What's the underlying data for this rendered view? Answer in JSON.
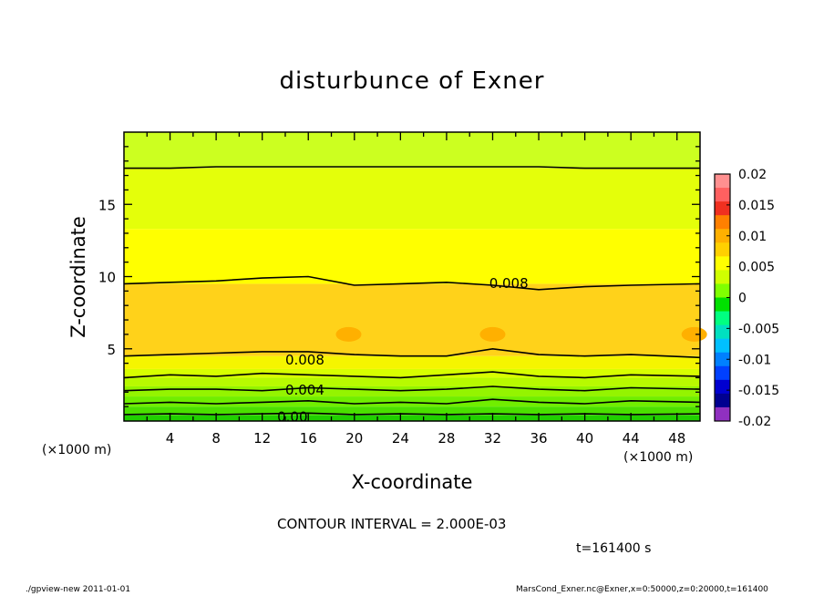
{
  "title": "disturbunce of Exner",
  "contour_interval": "CONTOUR INTERVAL = 2.000E-03",
  "time_label": "t=161400 s",
  "footer_left": "./gpview-new  2011-01-01",
  "footer_right": "MarsCond_Exner.nc@Exner,x=0:50000,z=0:20000,t=161400",
  "chart_data": {
    "type": "heatmap",
    "title": "disturbunce of Exner",
    "xlabel": "X-coordinate",
    "ylabel": "Z-coordinate",
    "x_unit_label": "(×1000 m)",
    "z_unit_label": "(×1000 m)",
    "xlim": [
      0,
      50
    ],
    "ylim": [
      0,
      20
    ],
    "x_ticks": [
      4,
      8,
      12,
      16,
      20,
      24,
      28,
      32,
      36,
      40,
      44,
      48
    ],
    "y_ticks": [
      5,
      10,
      15
    ],
    "contour_interval": 0.002,
    "contour_labels": [
      "0.008",
      "0.008",
      "0.004",
      "0.00"
    ],
    "colorbar": {
      "ticks": [
        "0.02",
        "0.015",
        "0.01",
        "0.005",
        "0",
        "-0.005",
        "-0.01",
        "-0.015",
        "-0.02"
      ],
      "range": [
        -0.02,
        0.02
      ],
      "colors": [
        "#ff9090",
        "#ff6060",
        "#f03020",
        "#ff8000",
        "#ffb000",
        "#ffd000",
        "#ffff00",
        "#d0ff00",
        "#80ff00",
        "#00e000",
        "#00ff80",
        "#00e0c0",
        "#00c0ff",
        "#0080ff",
        "#0040ff",
        "#0000d0",
        "#000090",
        "#9030c0"
      ]
    },
    "bands": [
      {
        "from": 0.0,
        "to": 0.4,
        "color": "#20d000"
      },
      {
        "from": 0.4,
        "to": 1.0,
        "color": "#4be000"
      },
      {
        "from": 1.0,
        "to": 1.7,
        "color": "#70ee00"
      },
      {
        "from": 1.7,
        "to": 2.4,
        "color": "#94f400"
      },
      {
        "from": 2.4,
        "to": 3.0,
        "color": "#b8fa00"
      },
      {
        "from": 3.0,
        "to": 3.6,
        "color": "#d8ff00"
      },
      {
        "from": 3.6,
        "to": 4.5,
        "color": "#f5f500"
      },
      {
        "from": 4.5,
        "to": 9.5,
        "color": "#ffd21a"
      },
      {
        "from": 9.5,
        "to": 13.3,
        "color": "#ffff00"
      },
      {
        "from": 13.3,
        "to": 17.5,
        "color": "#e4ff0a"
      },
      {
        "from": 17.5,
        "to": 20.0,
        "color": "#ccff20"
      }
    ],
    "contours": [
      {
        "level": 0.0,
        "z": [
          0.45,
          0.5,
          0.45,
          0.5,
          0.55,
          0.45,
          0.5,
          0.45,
          0.5,
          0.45,
          0.5,
          0.45,
          0.5
        ]
      },
      {
        "level": 0.002,
        "z": [
          1.2,
          1.3,
          1.2,
          1.3,
          1.4,
          1.2,
          1.3,
          1.2,
          1.5,
          1.3,
          1.2,
          1.4,
          1.3
        ]
      },
      {
        "level": 0.004,
        "z": [
          2.1,
          2.2,
          2.2,
          2.1,
          2.3,
          2.2,
          2.1,
          2.2,
          2.4,
          2.2,
          2.1,
          2.3,
          2.2
        ]
      },
      {
        "level": 0.006,
        "z": [
          3.0,
          3.2,
          3.1,
          3.3,
          3.2,
          3.1,
          3.0,
          3.2,
          3.4,
          3.1,
          3.0,
          3.2,
          3.1
        ]
      },
      {
        "level": 0.008,
        "z": [
          4.5,
          4.6,
          4.7,
          4.8,
          4.8,
          4.6,
          4.5,
          4.5,
          5.0,
          4.6,
          4.5,
          4.6,
          4.4
        ]
      },
      {
        "level": 0.008,
        "z": [
          9.5,
          9.6,
          9.7,
          9.9,
          10.0,
          9.4,
          9.5,
          9.6,
          9.4,
          9.1,
          9.3,
          9.4,
          9.5
        ]
      },
      {
        "level": 0.006,
        "z": [
          17.5,
          17.5,
          17.6,
          17.6,
          17.6,
          17.6,
          17.6,
          17.6,
          17.6,
          17.6,
          17.5,
          17.5,
          17.5
        ]
      }
    ],
    "contour_x": [
      0,
      4,
      8,
      12,
      16,
      20,
      24,
      28,
      32,
      36,
      40,
      44,
      50
    ],
    "blobs": [
      {
        "x": 19.5,
        "z": 6.0
      },
      {
        "x": 32.0,
        "z": 6.0
      },
      {
        "x": 49.5,
        "z": 6.0
      }
    ]
  }
}
